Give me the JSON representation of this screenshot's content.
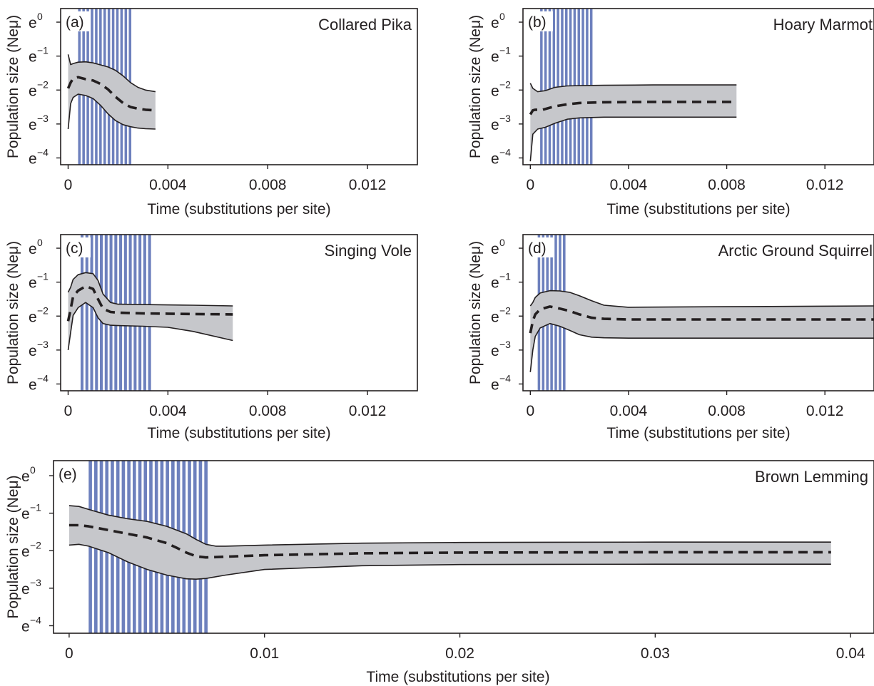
{
  "chart_data": [
    {
      "type": "area",
      "panel": "(a)",
      "species": "Collared Pika",
      "xlabel": "Time (substitutions per site)",
      "ylabel": "Population size (Neμ)",
      "xlim": [
        -0.0003,
        0.014
      ],
      "ylim": [
        -4.2,
        0.4
      ],
      "x_ticks": [
        0,
        0.004,
        0.008,
        0.012
      ],
      "x_tick_labels": [
        "0",
        "0.004",
        "0.008",
        "0.012"
      ],
      "y_ticks": [
        0,
        -1,
        -2,
        -3,
        -4
      ],
      "y_tick_labels": [
        "e",
        "e",
        "e",
        "e",
        "e"
      ],
      "y_tick_exponents": [
        "0",
        "−1",
        "−2",
        "−3",
        "−4"
      ],
      "glacial_bars": {
        "start": 0.0004,
        "end": 0.0026,
        "count": 13
      },
      "series": [
        {
          "role": "median",
          "style": "dashed",
          "x": [
            0,
            0.0001,
            0.0002,
            0.0004,
            0.0007,
            0.001,
            0.0013,
            0.0016,
            0.0019,
            0.0022,
            0.0025,
            0.0028,
            0.0031,
            0.0035
          ],
          "y": [
            -1.95,
            -1.78,
            -1.66,
            -1.62,
            -1.68,
            -1.72,
            -1.82,
            -1.98,
            -2.2,
            -2.38,
            -2.5,
            -2.55,
            -2.58,
            -2.6
          ]
        },
        {
          "role": "upper 95% HPD",
          "style": "solid",
          "x": [
            0,
            0.0001,
            0.0002,
            0.0004,
            0.0007,
            0.001,
            0.0013,
            0.0016,
            0.0019,
            0.0022,
            0.0025,
            0.0028,
            0.0031,
            0.0035
          ],
          "y": [
            -0.95,
            -1.25,
            -1.22,
            -1.18,
            -1.17,
            -1.2,
            -1.26,
            -1.32,
            -1.42,
            -1.58,
            -1.78,
            -1.92,
            -2.0,
            -2.05
          ]
        },
        {
          "role": "lower 95% HPD",
          "style": "solid",
          "x": [
            0,
            0.0001,
            0.0002,
            0.0004,
            0.0007,
            0.001,
            0.0013,
            0.0016,
            0.0019,
            0.0022,
            0.0025,
            0.0028,
            0.0031,
            0.0035
          ],
          "y": [
            -3.15,
            -2.4,
            -2.22,
            -2.12,
            -2.16,
            -2.25,
            -2.45,
            -2.7,
            -2.9,
            -3.02,
            -3.08,
            -3.12,
            -3.14,
            -3.15
          ]
        }
      ]
    },
    {
      "type": "area",
      "panel": "(b)",
      "species": "Hoary Marmot",
      "xlabel": "Time (substitutions per site)",
      "ylabel": "Population size (Neμ)",
      "xlim": [
        -0.0003,
        0.014
      ],
      "ylim": [
        -4.2,
        0.4
      ],
      "x_ticks": [
        0,
        0.004,
        0.008,
        0.012
      ],
      "x_tick_labels": [
        "0",
        "0.004",
        "0.008",
        "0.012"
      ],
      "y_ticks": [
        0,
        -1,
        -2,
        -3,
        -4
      ],
      "y_tick_labels": [
        "e",
        "e",
        "e",
        "e",
        "e"
      ],
      "y_tick_exponents": [
        "0",
        "−1",
        "−2",
        "−3",
        "−4"
      ],
      "glacial_bars": {
        "start": 0.0004,
        "end": 0.0026,
        "count": 13
      },
      "series": [
        {
          "role": "median",
          "style": "dashed",
          "x": [
            0,
            0.0001,
            0.0002,
            0.0005,
            0.001,
            0.0015,
            0.002,
            0.003,
            0.005,
            0.0084
          ],
          "y": [
            -2.72,
            -2.6,
            -2.58,
            -2.58,
            -2.48,
            -2.42,
            -2.38,
            -2.36,
            -2.35,
            -2.35
          ]
        },
        {
          "role": "upper 95% HPD",
          "style": "solid",
          "x": [
            0,
            0.0001,
            0.0003,
            0.0006,
            0.001,
            0.0015,
            0.002,
            0.003,
            0.005,
            0.0084
          ],
          "y": [
            -1.8,
            -1.95,
            -2.05,
            -2.02,
            -1.92,
            -1.88,
            -1.87,
            -1.86,
            -1.85,
            -1.85
          ]
        },
        {
          "role": "lower 95% HPD",
          "style": "solid",
          "x": [
            0,
            0.0001,
            0.0003,
            0.0006,
            0.001,
            0.0015,
            0.002,
            0.003,
            0.005,
            0.0084
          ],
          "y": [
            -4.1,
            -3.3,
            -3.15,
            -3.1,
            -2.98,
            -2.86,
            -2.82,
            -2.8,
            -2.8,
            -2.8
          ]
        }
      ]
    },
    {
      "type": "area",
      "panel": "(c)",
      "species": "Singing Vole",
      "xlabel": "Time (substitutions per site)",
      "ylabel": "Population size (Neμ)",
      "xlim": [
        -0.0003,
        0.014
      ],
      "ylim": [
        -4.2,
        0.4
      ],
      "x_ticks": [
        0,
        0.004,
        0.008,
        0.012
      ],
      "x_tick_labels": [
        "0",
        "0.004",
        "0.008",
        "0.012"
      ],
      "y_ticks": [
        0,
        -1,
        -2,
        -3,
        -4
      ],
      "y_tick_labels": [
        "e",
        "e",
        "e",
        "e",
        "e"
      ],
      "y_tick_exponents": [
        "0",
        "−1",
        "−2",
        "−3",
        "−4"
      ],
      "glacial_bars": {
        "start": 0.0005,
        "end": 0.0034,
        "count": 15
      },
      "series": [
        {
          "role": "median",
          "style": "dashed",
          "x": [
            0,
            0.0001,
            0.0002,
            0.0004,
            0.0007,
            0.001,
            0.0012,
            0.0014,
            0.0017,
            0.002,
            0.003,
            0.004,
            0.005,
            0.0066
          ],
          "y": [
            -2.15,
            -1.8,
            -1.42,
            -1.25,
            -1.12,
            -1.2,
            -1.5,
            -1.78,
            -1.88,
            -1.9,
            -1.92,
            -1.93,
            -1.94,
            -1.95
          ]
        },
        {
          "role": "upper 95% HPD",
          "style": "solid",
          "x": [
            0,
            0.0001,
            0.0002,
            0.0004,
            0.0007,
            0.001,
            0.0012,
            0.0014,
            0.0017,
            0.002,
            0.003,
            0.004,
            0.005,
            0.0066
          ],
          "y": [
            -1.3,
            -1.15,
            -0.92,
            -0.78,
            -0.72,
            -0.75,
            -0.95,
            -1.35,
            -1.6,
            -1.65,
            -1.66,
            -1.67,
            -1.68,
            -1.7
          ]
        },
        {
          "role": "lower 95% HPD",
          "style": "solid",
          "x": [
            0,
            0.0001,
            0.0002,
            0.0004,
            0.0007,
            0.001,
            0.0012,
            0.0014,
            0.0017,
            0.002,
            0.003,
            0.004,
            0.005,
            0.0066
          ],
          "y": [
            -3.0,
            -2.48,
            -1.98,
            -1.75,
            -1.6,
            -1.75,
            -2.05,
            -2.22,
            -2.27,
            -2.28,
            -2.3,
            -2.33,
            -2.45,
            -2.72
          ]
        }
      ]
    },
    {
      "type": "area",
      "panel": "(d)",
      "species": "Arctic Ground Squirrel",
      "xlabel": "Time (substitutions per site)",
      "ylabel": "Population size (Neμ)",
      "xlim": [
        -0.0003,
        0.014
      ],
      "ylim": [
        -4.2,
        0.4
      ],
      "x_ticks": [
        0,
        0.004,
        0.008,
        0.012
      ],
      "x_tick_labels": [
        "0",
        "0.004",
        "0.008",
        "0.012"
      ],
      "y_ticks": [
        0,
        -1,
        -2,
        -3,
        -4
      ],
      "y_tick_labels": [
        "e",
        "e",
        "e",
        "e",
        "e"
      ],
      "y_tick_exponents": [
        "0",
        "−1",
        "−2",
        "−3",
        "−4"
      ],
      "glacial_bars": {
        "start": 0.0003,
        "end": 0.0015,
        "count": 7
      },
      "series": [
        {
          "role": "median",
          "style": "dashed",
          "x": [
            0,
            0.0001,
            0.0002,
            0.0004,
            0.0008,
            0.0012,
            0.0016,
            0.002,
            0.0025,
            0.003,
            0.004,
            0.006,
            0.009,
            0.014
          ],
          "y": [
            -2.5,
            -2.15,
            -1.95,
            -1.8,
            -1.72,
            -1.78,
            -1.85,
            -1.95,
            -2.05,
            -2.08,
            -2.1,
            -2.1,
            -2.1,
            -2.1
          ]
        },
        {
          "role": "upper 95% HPD",
          "style": "solid",
          "x": [
            0,
            0.0001,
            0.0002,
            0.0004,
            0.0008,
            0.0012,
            0.0016,
            0.002,
            0.0025,
            0.003,
            0.004,
            0.006,
            0.009,
            0.014
          ],
          "y": [
            -1.7,
            -1.6,
            -1.45,
            -1.32,
            -1.25,
            -1.26,
            -1.3,
            -1.4,
            -1.55,
            -1.68,
            -1.74,
            -1.73,
            -1.72,
            -1.7
          ]
        },
        {
          "role": "lower 95% HPD",
          "style": "solid",
          "x": [
            0,
            0.0001,
            0.0002,
            0.0004,
            0.0008,
            0.0012,
            0.0016,
            0.002,
            0.0025,
            0.003,
            0.004,
            0.006,
            0.009,
            0.014
          ],
          "y": [
            -3.65,
            -3.0,
            -2.6,
            -2.35,
            -2.22,
            -2.3,
            -2.42,
            -2.55,
            -2.62,
            -2.64,
            -2.65,
            -2.65,
            -2.65,
            -2.65
          ]
        }
      ]
    },
    {
      "type": "area",
      "panel": "(e)",
      "species": "Brown Lemming",
      "xlabel": "Time (substitutions per site)",
      "ylabel": "Population size (Neμ)",
      "xlim": [
        -0.0008,
        0.0412
      ],
      "ylim": [
        -4.2,
        0.4
      ],
      "x_ticks": [
        0,
        0.01,
        0.02,
        0.03,
        0.04
      ],
      "x_tick_labels": [
        "0",
        "0.01",
        "0.02",
        "0.03",
        "0.04"
      ],
      "y_ticks": [
        0,
        -1,
        -2,
        -3,
        -4
      ],
      "y_tick_labels": [
        "e",
        "e",
        "e",
        "e",
        "e"
      ],
      "y_tick_exponents": [
        "0",
        "−1",
        "−2",
        "−3",
        "−4"
      ],
      "glacial_bars": {
        "start": 0.001,
        "end": 0.0072,
        "count": 22
      },
      "series": [
        {
          "role": "median",
          "style": "dashed",
          "x": [
            0,
            0.0005,
            0.001,
            0.002,
            0.003,
            0.004,
            0.005,
            0.0055,
            0.006,
            0.0065,
            0.007,
            0.008,
            0.01,
            0.015,
            0.02,
            0.03,
            0.039
          ],
          "y": [
            -1.32,
            -1.32,
            -1.35,
            -1.45,
            -1.55,
            -1.65,
            -1.8,
            -1.92,
            -2.05,
            -2.15,
            -2.18,
            -2.16,
            -2.12,
            -2.07,
            -2.05,
            -2.04,
            -2.04
          ]
        },
        {
          "role": "upper 95% HPD",
          "style": "solid",
          "x": [
            0,
            0.0005,
            0.001,
            0.002,
            0.003,
            0.004,
            0.005,
            0.006,
            0.0065,
            0.007,
            0.0075,
            0.008,
            0.01,
            0.015,
            0.02,
            0.03,
            0.039
          ],
          "y": [
            -0.8,
            -0.82,
            -0.9,
            -1.05,
            -1.15,
            -1.22,
            -1.35,
            -1.55,
            -1.7,
            -1.83,
            -1.88,
            -1.88,
            -1.85,
            -1.8,
            -1.78,
            -1.77,
            -1.77
          ]
        },
        {
          "role": "lower 95% HPD",
          "style": "solid",
          "x": [
            0,
            0.0005,
            0.001,
            0.002,
            0.003,
            0.004,
            0.005,
            0.006,
            0.0065,
            0.007,
            0.008,
            0.01,
            0.015,
            0.02,
            0.03,
            0.039
          ],
          "y": [
            -1.85,
            -1.83,
            -1.88,
            -2.05,
            -2.3,
            -2.5,
            -2.65,
            -2.75,
            -2.76,
            -2.74,
            -2.65,
            -2.5,
            -2.4,
            -2.37,
            -2.36,
            -2.36
          ]
        }
      ]
    }
  ]
}
